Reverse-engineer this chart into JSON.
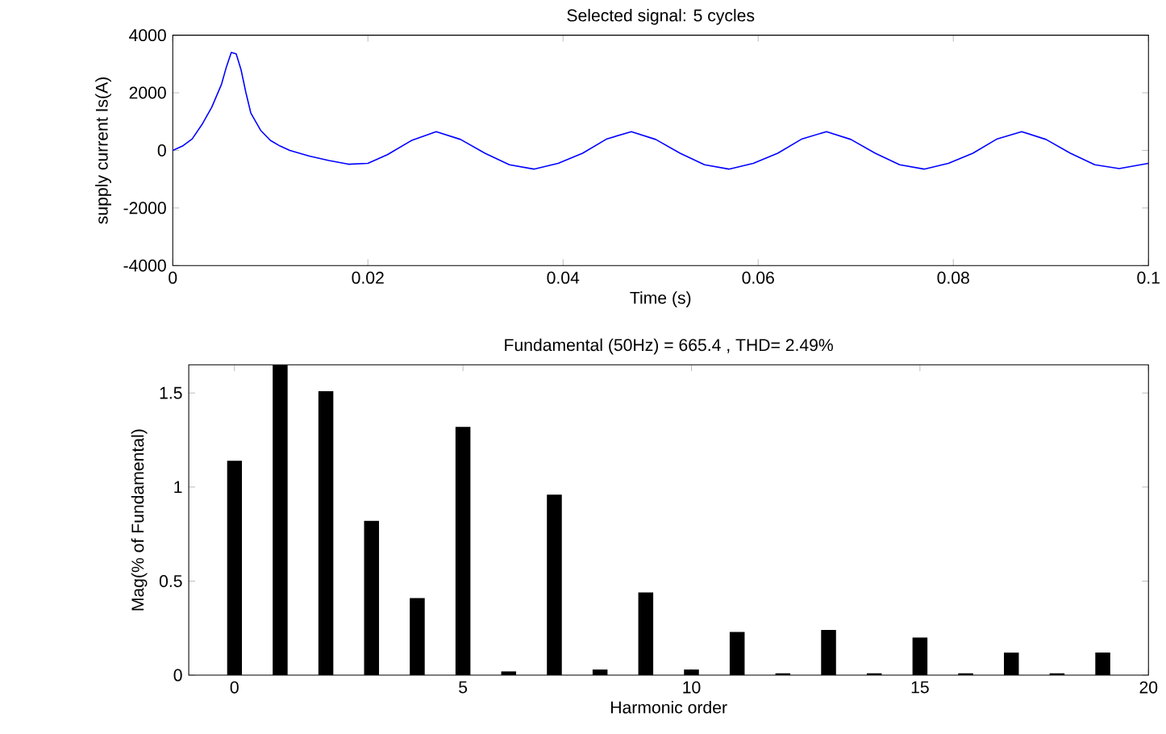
{
  "chart_data": [
    {
      "type": "line",
      "title": "Selected signal: 5 cycles",
      "xlabel": "Time (s)",
      "ylabel": "supply current Is(A)",
      "x": [
        0,
        0.001,
        0.002,
        0.003,
        0.004,
        0.005,
        0.0055,
        0.006,
        0.0065,
        0.007,
        0.0075,
        0.008,
        0.009,
        0.01,
        0.011,
        0.012,
        0.014,
        0.016,
        0.018,
        0.02,
        0.022,
        0.0245,
        0.027,
        0.0295,
        0.032,
        0.0345,
        0.037,
        0.0395,
        0.042,
        0.0445,
        0.047,
        0.0495,
        0.052,
        0.0545,
        0.057,
        0.0595,
        0.062,
        0.0645,
        0.067,
        0.0695,
        0.072,
        0.0745,
        0.077,
        0.0795,
        0.082,
        0.0845,
        0.087,
        0.0895,
        0.092,
        0.0945,
        0.097,
        0.1
      ],
      "series": [
        {
          "color": "#0000ff",
          "values": [
            0,
            150,
            400,
            900,
            1500,
            2300,
            2900,
            3400,
            3350,
            2800,
            2000,
            1300,
            700,
            350,
            150,
            0,
            -200,
            -350,
            -480,
            -450,
            -150,
            350,
            650,
            380,
            -100,
            -500,
            -650,
            -450,
            -100,
            400,
            650,
            380,
            -100,
            -500,
            -650,
            -450,
            -100,
            400,
            650,
            380,
            -100,
            -500,
            -650,
            -450,
            -100,
            400,
            650,
            380,
            -100,
            -500,
            -630,
            -450
          ]
        }
      ],
      "xlim": [
        0,
        0.1
      ],
      "ylim": [
        -4000,
        4000
      ],
      "xticks": [
        0,
        0.02,
        0.04,
        0.06,
        0.08,
        0.1
      ],
      "yticks": [
        -4000,
        -2000,
        0,
        2000,
        4000
      ]
    },
    {
      "type": "bar",
      "title": "Fundamental (50Hz) = 665.4 , THD= 2.49%",
      "xlabel": "Harmonic order",
      "ylabel": "Mag(% of Fundamental)",
      "x": [
        0,
        1,
        2,
        3,
        4,
        5,
        6,
        7,
        8,
        9,
        10,
        11,
        12,
        13,
        14,
        15,
        16,
        17,
        18,
        19
      ],
      "series": [
        {
          "color": "#000000",
          "values": [
            1.14,
            1.65,
            1.51,
            0.82,
            0.41,
            1.32,
            0.02,
            0.96,
            0.03,
            0.44,
            0.03,
            0.23,
            0.01,
            0.24,
            0.01,
            0.2,
            0.01,
            0.12,
            0.01,
            0.12
          ]
        }
      ],
      "xlim": [
        -1,
        20
      ],
      "ylim": [
        0,
        1.65
      ],
      "xticks": [
        0,
        5,
        10,
        15,
        20
      ],
      "yticks": [
        0,
        0.5,
        1,
        1.5
      ]
    }
  ]
}
